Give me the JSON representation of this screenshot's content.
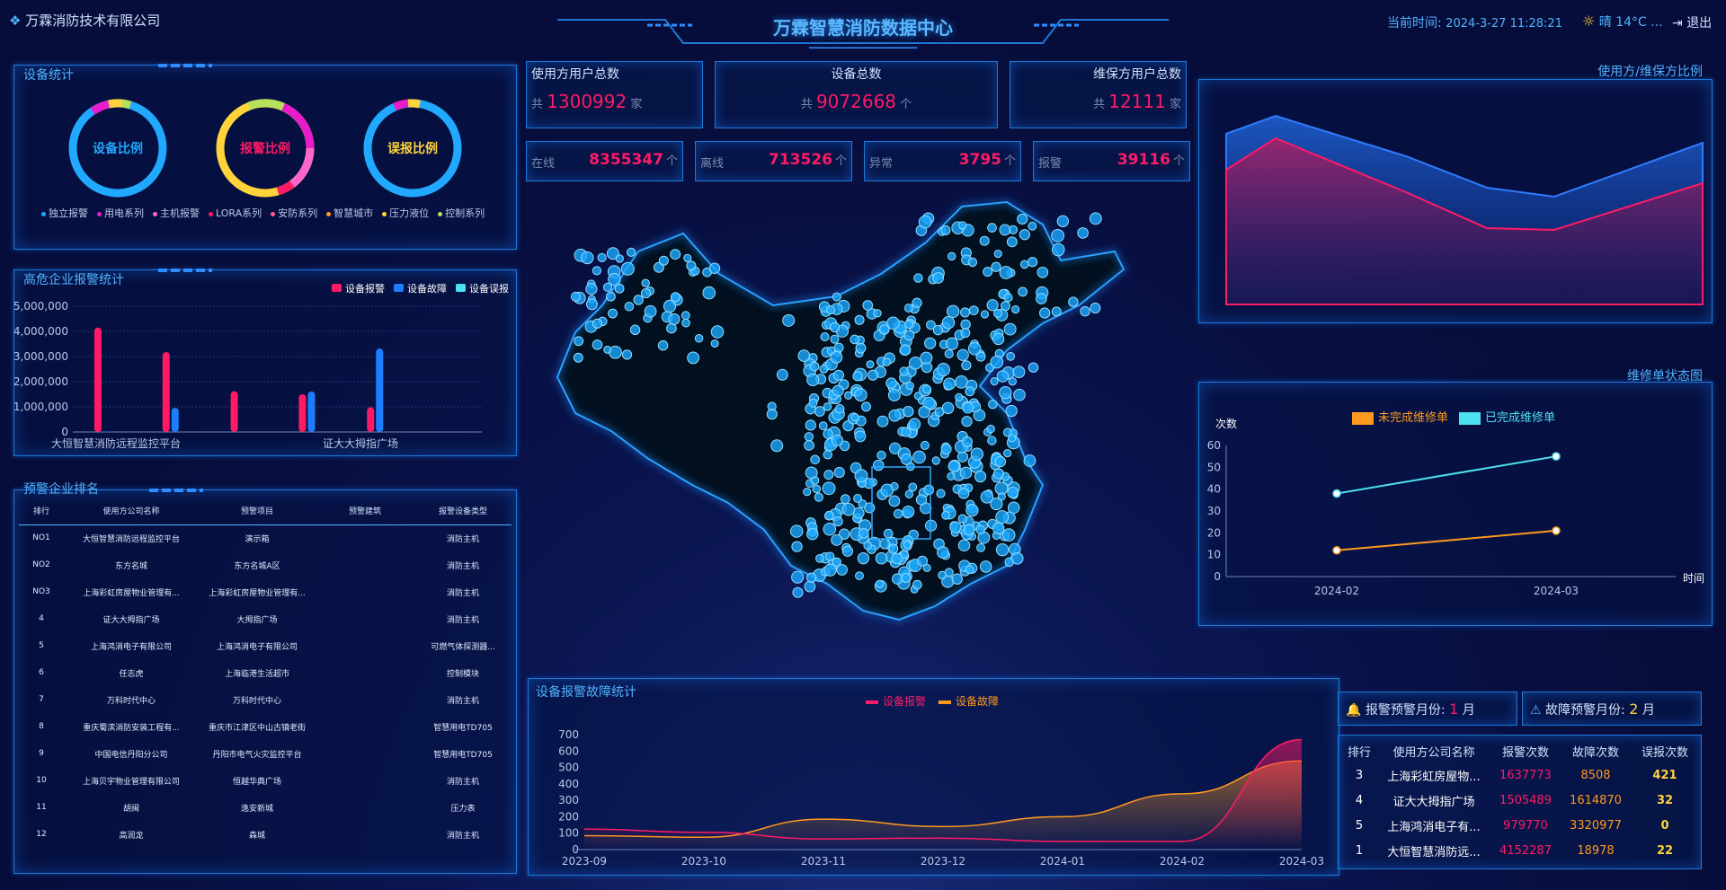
{
  "header": {
    "company": "万霖消防技术有限公司",
    "title": "万霖智慧消防数据中心",
    "time_label": "当前时间:",
    "time_value": "2024-3-27 11:28:21",
    "weather": "晴 14°C ...",
    "logout": "退出"
  },
  "device_stats": {
    "title": "设备统计",
    "rings": [
      "设备比例",
      "报警比例",
      "误报比例"
    ],
    "legend": [
      "独立报警",
      "用电系列",
      "主机报警",
      "LORA系列",
      "安防系列",
      "智慧城市",
      "压力液位",
      "控制系列"
    ],
    "legend_colors": [
      "#21a8ff",
      "#e81ccb",
      "#ff66cc",
      "#ff1a66",
      "#ff5a8a",
      "#ff9a1f",
      "#ffd43b",
      "#b7e05a"
    ]
  },
  "alarm_stats": {
    "title": "高危企业报警统计",
    "legend": [
      "设备报警",
      "设备故障",
      "设备误报"
    ],
    "colors": [
      "#ff1a66",
      "#1c7dff",
      "#4de0f0"
    ],
    "y_ticks": [
      "5,000,000",
      "4,000,000",
      "3,000,000",
      "2,000,000",
      "1,000,000",
      "0"
    ],
    "x_labels": [
      "大恒智慧消防远程监控平台",
      "证大大拇指广场"
    ]
  },
  "ranking": {
    "title": "预警企业排名",
    "headers": [
      "排行",
      "使用方公司名称",
      "预警项目",
      "预警建筑",
      "报警设备类型"
    ],
    "rows": [
      [
        "NO1",
        "大恒智慧消防远程监控平台",
        "演示箱",
        "",
        "消防主机"
      ],
      [
        "NO2",
        "东方名城",
        "东方名城A区",
        "",
        "消防主机"
      ],
      [
        "NO3",
        "上海彩虹房屋物业管理有...",
        "上海彩虹房屋物业管理有...",
        "",
        "消防主机"
      ],
      [
        "4",
        "证大大拇指广场",
        "大拇指广场",
        "",
        "消防主机"
      ],
      [
        "5",
        "上海鸿消电子有限公司",
        "上海鸿消电子有限公司",
        "",
        "可燃气体探测器..."
      ],
      [
        "6",
        "任志虎",
        "上海临港生活超市",
        "",
        "控制模块"
      ],
      [
        "7",
        "万科时代中心",
        "万科时代中心",
        "",
        "消防主机"
      ],
      [
        "8",
        "重庆蜀滨消防安装工程有...",
        "重庆市江津区中山古镇老街",
        "",
        "智慧用电TD705"
      ],
      [
        "9",
        "中国电信丹阳分公司",
        "丹阳市电气火灾监控平台",
        "",
        "智慧用电TD705"
      ],
      [
        "10",
        "上海贝宇物业管理有限公司",
        "恒越华典广场",
        "",
        "消防主机"
      ],
      [
        "11",
        "胡闽",
        "逸安新城",
        "",
        "压力表"
      ],
      [
        "12",
        "高润龙",
        "森城",
        "",
        "消防主机"
      ]
    ]
  },
  "top_stats": {
    "users_title": "使用方用户总数",
    "users_prefix": "共",
    "users_value": "1300992",
    "users_unit": "家",
    "devices_title": "设备总数",
    "devices_prefix": "共",
    "devices_value": "9072668",
    "devices_unit": "个",
    "maint_title": "维保方用户总数",
    "maint_prefix": "共",
    "maint_value": "12111",
    "maint_unit": "家",
    "status": [
      {
        "label": "在线",
        "value": "8355347",
        "unit": "个"
      },
      {
        "label": "离线",
        "value": "713526",
        "unit": "个"
      },
      {
        "label": "异常",
        "value": "3795",
        "unit": "个"
      },
      {
        "label": "报警",
        "value": "39116",
        "unit": "个"
      }
    ]
  },
  "ratio_panel": {
    "title": "使用方/维保方比例"
  },
  "repair_panel": {
    "title": "维修单状态图",
    "legend": [
      "未完成维修单",
      "已完成维修单"
    ],
    "y_axis_name": "次数",
    "x_axis_name": "时间",
    "y_ticks": [
      "60",
      "50",
      "40",
      "30",
      "20",
      "10",
      "0"
    ],
    "x_labels": [
      "2024-02",
      "2024-03"
    ]
  },
  "fault_panel": {
    "title": "设备报警故障统计",
    "legend": [
      "设备报警",
      "设备故障"
    ],
    "y_ticks": [
      "700",
      "600",
      "500",
      "400",
      "300",
      "200",
      "100",
      "0"
    ],
    "x_labels": [
      "2023-09",
      "2023-10",
      "2023-11",
      "2023-12",
      "2024-01",
      "2024-02",
      "2024-03"
    ]
  },
  "warn_month": {
    "alarm_label": "报警预警月份:",
    "alarm_value": "1",
    "alarm_unit": "月",
    "fault_label": "故障预警月份:",
    "fault_value": "2",
    "fault_unit": "月"
  },
  "warn_table": {
    "headers": [
      "排行",
      "使用方公司名称",
      "报警次数",
      "故障次数",
      "误报次数"
    ],
    "rows": [
      [
        "3",
        "上海彩虹房屋物...",
        "1637773",
        "8508",
        "421"
      ],
      [
        "4",
        "证大大拇指广场",
        "1505489",
        "1614870",
        "32"
      ],
      [
        "5",
        "上海鸿消电子有...",
        "979770",
        "3320977",
        "0"
      ],
      [
        "1",
        "大恒智慧消防远...",
        "4152287",
        "18978",
        "22"
      ]
    ]
  },
  "chart_data": [
    {
      "type": "bar",
      "title": "高危企业报警统计",
      "categories": [
        "大恒智慧消防远程监控平台",
        "",
        "",
        "证大大拇指广场",
        "",
        ""
      ],
      "series": [
        {
          "name": "设备报警",
          "values": [
            4150000,
            3180000,
            1620000,
            1500000,
            980000,
            0
          ]
        },
        {
          "name": "设备故障",
          "values": [
            20000,
            960000,
            0,
            1610000,
            3320000,
            0
          ]
        },
        {
          "name": "设备误报",
          "values": [
            0,
            0,
            0,
            0,
            0,
            0
          ]
        }
      ],
      "ylim": [
        0,
        5000000
      ]
    },
    {
      "type": "line",
      "title": "维修单状态图",
      "x": [
        "2024-02",
        "2024-03"
      ],
      "series": [
        {
          "name": "未完成维修单",
          "values": [
            12,
            21
          ]
        },
        {
          "name": "已完成维修单",
          "values": [
            38,
            55
          ]
        }
      ],
      "ylim": [
        0,
        60
      ]
    },
    {
      "type": "area",
      "title": "设备报警故障统计",
      "x": [
        "2023-09",
        "2023-10",
        "2023-11",
        "2023-12",
        "2024-01",
        "2024-02",
        "2024-03"
      ],
      "series": [
        {
          "name": "设备报警",
          "values": [
            125,
            105,
            65,
            70,
            50,
            50,
            670
          ]
        },
        {
          "name": "设备故障",
          "values": [
            85,
            75,
            185,
            140,
            200,
            340,
            540
          ]
        }
      ],
      "ylim": [
        0,
        700
      ]
    }
  ]
}
